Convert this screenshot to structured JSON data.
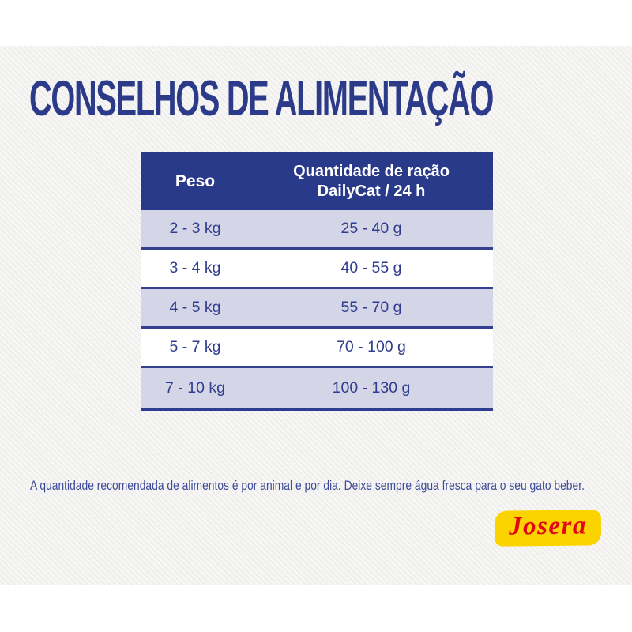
{
  "page": {
    "title": "CONSELHOS DE ALIMENTAÇÃO",
    "footnote": "A quantidade recomendada de alimentos é por animal e por dia. Deixe sempre água fresca para o seu gato beber."
  },
  "table": {
    "header": {
      "weight_label": "Peso",
      "amount_line1": "Quantidade de ração",
      "amount_line2": "DailyCat / 24 h"
    },
    "rows": [
      {
        "weight": "2 - 3 kg",
        "amount": "25 - 40 g"
      },
      {
        "weight": "3 - 4 kg",
        "amount": "40 - 55 g"
      },
      {
        "weight": "4 - 5 kg",
        "amount": "55 - 70 g"
      },
      {
        "weight": "5 - 7 kg",
        "amount": "70 - 100 g"
      },
      {
        "weight": "7 - 10 kg",
        "amount": "100 - 130 g"
      }
    ]
  },
  "brand": {
    "logo_text": "Josera"
  },
  "colors": {
    "title_blue": "#2c3a8a",
    "header_bg": "#293a8a",
    "row_alt_bg": "#d4d6e7",
    "row_bg": "#ffffff",
    "separator_blue": "#32418f",
    "cell_text_blue": "#2e3d8f",
    "footnote_blue": "#3c4a99",
    "paper_bg": "#f2f1ef",
    "logo_yellow": "#fbd400",
    "logo_red": "#e30613"
  }
}
